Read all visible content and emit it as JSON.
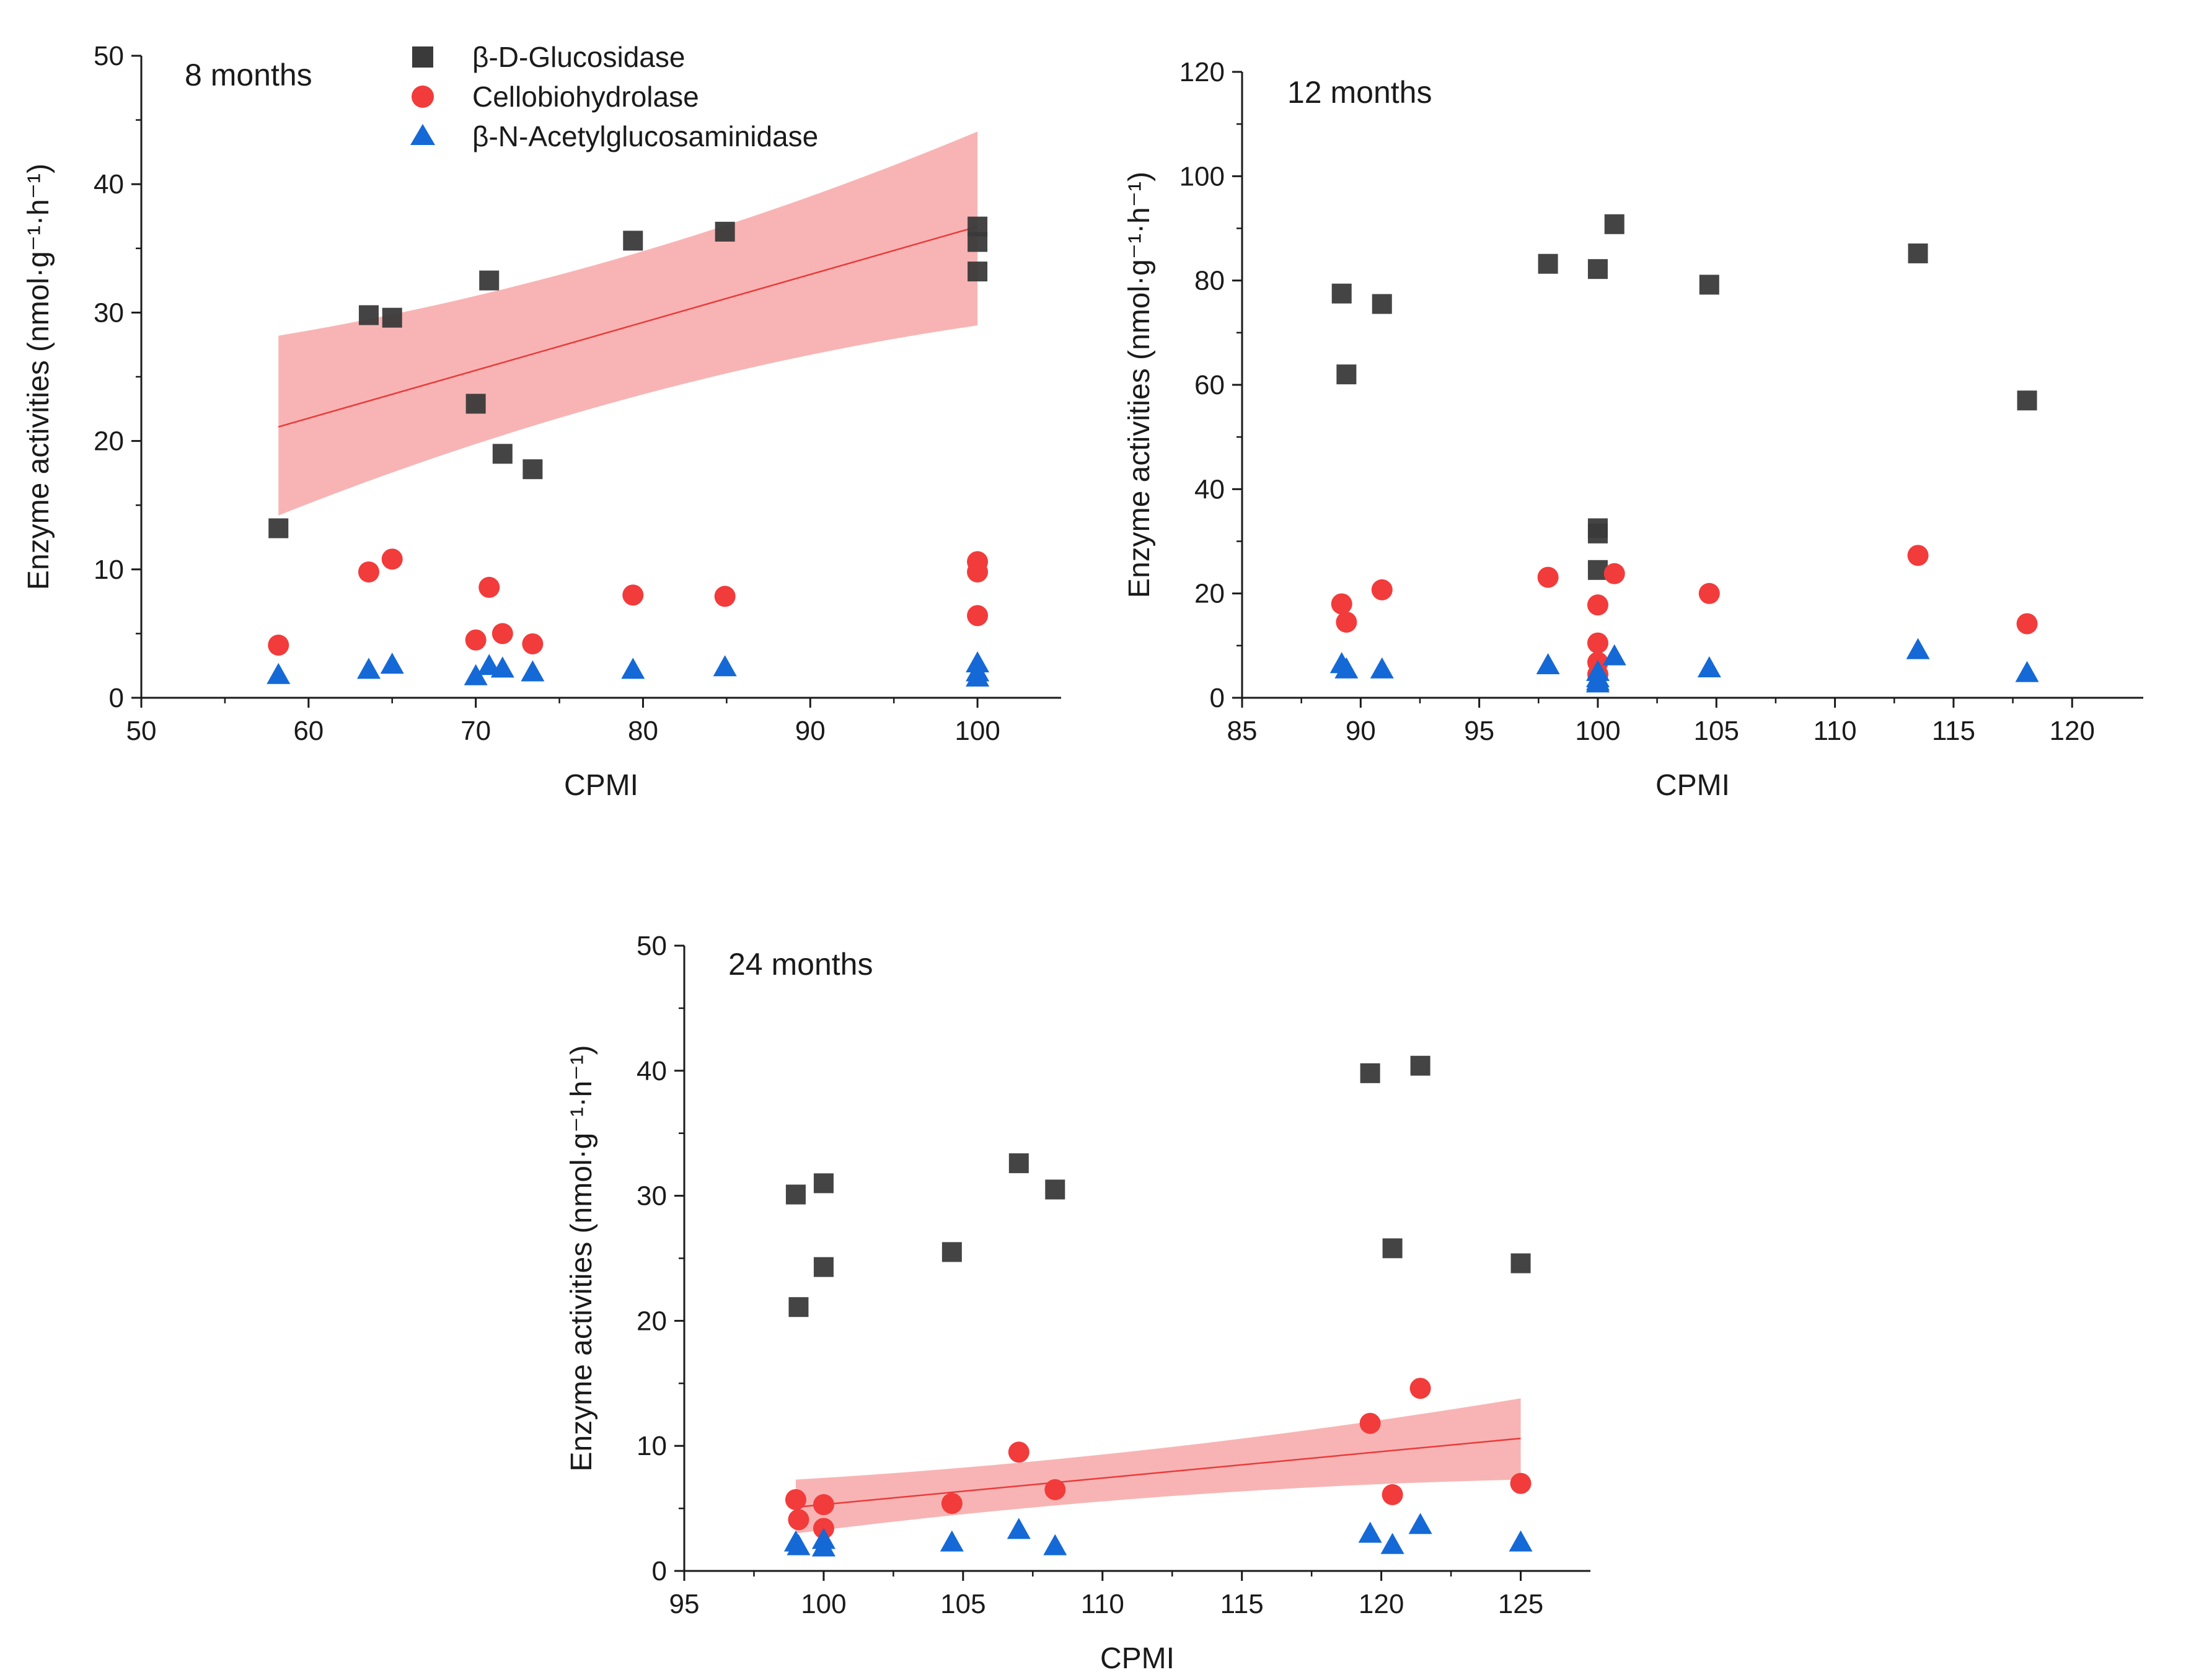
{
  "colors": {
    "glucosidase": "#3a3a3a",
    "cellobiohydrolase": "#f23b3b",
    "acetylglucosaminidase": "#1469d6",
    "ci_band": "#f7a7a7",
    "fit_line": "#ea3b3b"
  },
  "legend": [
    {
      "label": "β-D-Glucosidase",
      "marker": "square",
      "series": "glucosidase"
    },
    {
      "label": "Cellobiohydrolase",
      "marker": "circle",
      "series": "cellobiohydrolase"
    },
    {
      "label": "β-N-Acetylglucosaminidase",
      "marker": "triangle",
      "series": "acetylglucosaminidase"
    }
  ],
  "chart_data": [
    {
      "type": "scatter",
      "title": "8 months",
      "xlabel": "CPMI",
      "ylabel": "Enzyme activities (nmol·g⁻¹·h⁻¹)",
      "xlim": [
        50,
        105
      ],
      "ylim": [
        0,
        50
      ],
      "xticks": [
        50,
        60,
        70,
        80,
        90,
        100
      ],
      "yticks": [
        0,
        10,
        20,
        30,
        40,
        50
      ],
      "series": [
        {
          "name": "β-D-Glucosidase",
          "key": "glucosidase",
          "marker": "square",
          "points": [
            [
              58.2,
              13.2
            ],
            [
              63.6,
              29.8
            ],
            [
              65.0,
              29.6
            ],
            [
              70.0,
              22.9
            ],
            [
              70.8,
              32.5
            ],
            [
              71.6,
              19.0
            ],
            [
              73.4,
              17.8
            ],
            [
              79.4,
              35.6
            ],
            [
              84.9,
              36.3
            ],
            [
              100,
              36.7
            ],
            [
              100,
              35.5
            ],
            [
              100,
              33.2
            ]
          ]
        },
        {
          "name": "Cellobiohydrolase",
          "key": "cellobiohydrolase",
          "marker": "circle",
          "points": [
            [
              58.2,
              4.1
            ],
            [
              63.6,
              9.8
            ],
            [
              65.0,
              10.8
            ],
            [
              70.0,
              4.5
            ],
            [
              70.8,
              8.6
            ],
            [
              71.6,
              5.0
            ],
            [
              73.4,
              4.2
            ],
            [
              79.4,
              8.0
            ],
            [
              84.9,
              7.9
            ],
            [
              100,
              10.6
            ],
            [
              100,
              9.8
            ],
            [
              100,
              6.4
            ]
          ]
        },
        {
          "name": "β-N-Acetylglucosaminidase",
          "key": "acetylglucosaminidase",
          "marker": "triangle",
          "points": [
            [
              58.2,
              1.8
            ],
            [
              63.6,
              2.2
            ],
            [
              65.0,
              2.6
            ],
            [
              70.0,
              1.7
            ],
            [
              70.8,
              2.5
            ],
            [
              71.6,
              2.3
            ],
            [
              73.4,
              2.0
            ],
            [
              79.4,
              2.2
            ],
            [
              84.9,
              2.4
            ],
            [
              100,
              2.7
            ],
            [
              100,
              2.0
            ],
            [
              100,
              1.6
            ]
          ]
        }
      ],
      "fit": {
        "series": "glucosidase",
        "x": [
          58.2,
          100
        ],
        "y": [
          21.1,
          36.7
        ],
        "ci_upper": [
          28.2,
          44.1
        ],
        "ci_lower": [
          14.2,
          29.0
        ]
      }
    },
    {
      "type": "scatter",
      "title": "12 months",
      "xlabel": "CPMI",
      "ylabel": "Enzyme activities (nmol·g⁻¹·h⁻¹)",
      "xlim": [
        85,
        123
      ],
      "ylim": [
        0,
        120
      ],
      "xticks": [
        85,
        90,
        95,
        100,
        105,
        110,
        115,
        120
      ],
      "yticks": [
        0,
        20,
        40,
        60,
        80,
        100,
        120
      ],
      "series": [
        {
          "name": "β-D-Glucosidase",
          "key": "glucosidase",
          "marker": "square",
          "points": [
            [
              89.2,
              77.5
            ],
            [
              89.4,
              62.0
            ],
            [
              90.9,
              75.5
            ],
            [
              97.9,
              83.2
            ],
            [
              100,
              82.2
            ],
            [
              100.7,
              90.8
            ],
            [
              104.7,
              79.2
            ],
            [
              113.5,
              85.2
            ],
            [
              118.1,
              57.0
            ],
            [
              100,
              32.5
            ],
            [
              100,
              31.5
            ],
            [
              100,
              24.5
            ]
          ]
        },
        {
          "name": "Cellobiohydrolase",
          "key": "cellobiohydrolase",
          "marker": "circle",
          "points": [
            [
              89.2,
              18.0
            ],
            [
              89.4,
              14.5
            ],
            [
              90.9,
              20.7
            ],
            [
              97.9,
              23.1
            ],
            [
              100,
              17.8
            ],
            [
              100.7,
              23.8
            ],
            [
              104.7,
              20.0
            ],
            [
              113.5,
              27.3
            ],
            [
              118.1,
              14.2
            ],
            [
              100,
              10.5
            ],
            [
              100,
              6.8
            ],
            [
              100,
              4.5
            ]
          ]
        },
        {
          "name": "β-N-Acetylglucosaminidase",
          "key": "acetylglucosaminidase",
          "marker": "triangle",
          "points": [
            [
              89.2,
              6.5
            ],
            [
              89.4,
              5.5
            ],
            [
              90.9,
              5.5
            ],
            [
              97.9,
              6.3
            ],
            [
              100,
              5.0
            ],
            [
              100.7,
              8.0
            ],
            [
              104.7,
              5.7
            ],
            [
              113.5,
              9.2
            ],
            [
              118.1,
              4.8
            ],
            [
              100,
              3.8
            ],
            [
              100,
              3.2
            ],
            [
              100,
              2.8
            ]
          ]
        }
      ]
    },
    {
      "type": "scatter",
      "title": "24 months",
      "xlabel": "CPMI",
      "ylabel": "Enzyme activities (nmol·g⁻¹·h⁻¹)",
      "xlim": [
        95,
        127.5
      ],
      "ylim": [
        0,
        50
      ],
      "xticks": [
        95,
        100,
        105,
        110,
        115,
        120,
        125
      ],
      "yticks": [
        0,
        10,
        20,
        30,
        40,
        50
      ],
      "series": [
        {
          "name": "β-D-Glucosidase",
          "key": "glucosidase",
          "marker": "square",
          "points": [
            [
              99.0,
              30.1
            ],
            [
              99.1,
              21.1
            ],
            [
              100,
              31.0
            ],
            [
              100,
              24.3
            ],
            [
              104.6,
              25.5
            ],
            [
              107.0,
              32.6
            ],
            [
              108.3,
              30.5
            ],
            [
              119.6,
              39.8
            ],
            [
              120.4,
              25.8
            ],
            [
              121.4,
              40.4
            ],
            [
              125,
              24.6
            ]
          ]
        },
        {
          "name": "Cellobiohydrolase",
          "key": "cellobiohydrolase",
          "marker": "circle",
          "points": [
            [
              99.0,
              5.7
            ],
            [
              99.1,
              4.1
            ],
            [
              100,
              5.3
            ],
            [
              100,
              3.4
            ],
            [
              104.6,
              5.4
            ],
            [
              107.0,
              9.5
            ],
            [
              108.3,
              6.5
            ],
            [
              119.6,
              11.8
            ],
            [
              120.4,
              6.1
            ],
            [
              121.4,
              14.6
            ],
            [
              125,
              7.0
            ]
          ]
        },
        {
          "name": "β-N-Acetylglucosaminidase",
          "key": "acetylglucosaminidase",
          "marker": "triangle",
          "points": [
            [
              99.0,
              2.3
            ],
            [
              99.1,
              2.0
            ],
            [
              100,
              2.5
            ],
            [
              100,
              1.9
            ],
            [
              104.6,
              2.3
            ],
            [
              107.0,
              3.3
            ],
            [
              108.3,
              2.0
            ],
            [
              119.6,
              3.0
            ],
            [
              120.4,
              2.1
            ],
            [
              121.4,
              3.7
            ],
            [
              125,
              2.3
            ]
          ]
        }
      ],
      "fit": {
        "series": "cellobiohydrolase",
        "x": [
          99.0,
          125
        ],
        "y": [
          5.1,
          10.6
        ],
        "ci_upper": [
          7.3,
          13.8
        ],
        "ci_lower": [
          3.0,
          7.3
        ]
      }
    }
  ]
}
